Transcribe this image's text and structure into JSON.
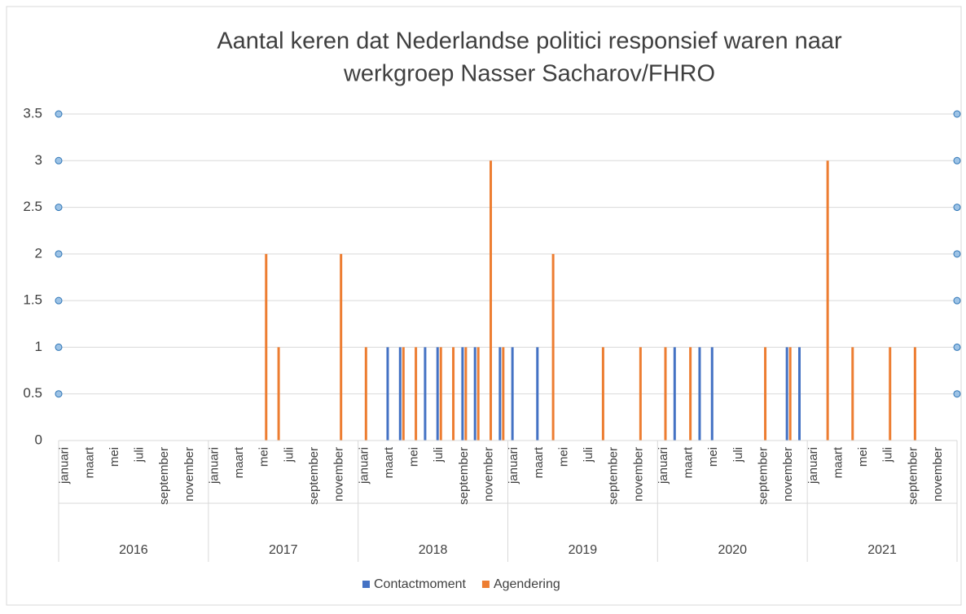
{
  "chart_data": {
    "type": "bar",
    "title": [
      "Aantal keren dat Nederlandse politici responsief waren naar",
      "werkgroep Nasser Sacharov/FHRO"
    ],
    "categories": [
      "januari",
      null,
      "maart",
      null,
      "mei",
      null,
      "juli",
      null,
      "september",
      null,
      "november",
      null,
      "januari",
      null,
      "maart",
      null,
      "mei",
      null,
      "juli",
      null,
      "september",
      null,
      "november",
      null,
      "januari",
      null,
      "maart",
      null,
      "mei",
      null,
      "juli",
      null,
      "september",
      null,
      "november",
      null,
      "januari",
      null,
      "maart",
      null,
      "mei",
      null,
      "juli",
      null,
      "september",
      null,
      "november",
      null,
      "januari",
      null,
      "maart",
      null,
      "mei",
      null,
      "juli",
      null,
      "september",
      null,
      "november",
      null,
      "januari",
      null,
      "maart",
      null,
      "mei",
      null,
      "juli",
      null,
      "september",
      null,
      "november",
      null
    ],
    "category_groups": [
      "2016",
      "2017",
      "2018",
      "2019",
      "2020",
      "2021"
    ],
    "series": [
      {
        "name": "Contactmoment",
        "color": "#4472c4",
        "values": [
          0,
          0,
          0,
          0,
          0,
          0,
          0,
          0,
          0,
          0,
          0,
          0,
          0,
          0,
          0,
          0,
          0,
          0,
          0,
          0,
          0,
          0,
          0,
          0,
          0,
          0,
          1,
          1,
          0,
          1,
          1,
          0,
          1,
          1,
          0,
          1,
          1,
          0,
          1,
          0,
          0,
          0,
          0,
          0,
          0,
          0,
          0,
          0,
          0,
          1,
          0,
          1,
          1,
          0,
          0,
          0,
          0,
          0,
          1,
          1,
          0,
          0,
          0,
          0,
          0,
          0,
          0,
          0,
          0,
          0,
          0,
          0
        ]
      },
      {
        "name": "Agendering",
        "color": "#ed7d31",
        "values": [
          0,
          0,
          0,
          0,
          0,
          0,
          0,
          0,
          0,
          0,
          0,
          0,
          0,
          0,
          0,
          0,
          2,
          1,
          0,
          0,
          0,
          0,
          2,
          0,
          1,
          0,
          0,
          1,
          1,
          0,
          1,
          1,
          1,
          1,
          3,
          1,
          0,
          0,
          0,
          2,
          0,
          0,
          0,
          1,
          0,
          0,
          1,
          0,
          1,
          0,
          1,
          0,
          0,
          0,
          0,
          0,
          1,
          0,
          1,
          0,
          0,
          3,
          0,
          1,
          0,
          0,
          1,
          0,
          1,
          0,
          0,
          0
        ]
      }
    ],
    "ylim": [
      0,
      3.5
    ],
    "yticks": [
      0,
      0.5,
      1,
      1.5,
      2,
      2.5,
      3,
      3.5
    ],
    "grid": true,
    "legend": "bottom"
  }
}
